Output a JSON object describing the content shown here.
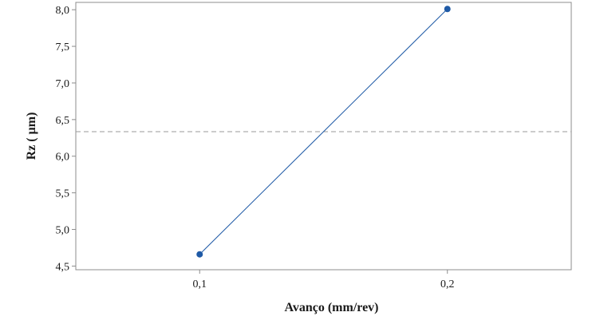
{
  "chart_data": {
    "type": "line",
    "title": "",
    "xlabel": "Avanço (mm/rev)",
    "ylabel": "Rz ( µm)",
    "categories": [
      "0,1",
      "0,2"
    ],
    "series": [
      {
        "name": "Rz",
        "x": [
          0.1,
          0.2
        ],
        "values": [
          4.66,
          8.01
        ]
      }
    ],
    "yticks": [
      4.5,
      5.0,
      5.5,
      6.0,
      6.5,
      7.0,
      7.5,
      8.0
    ],
    "ytick_labels": [
      "4,5",
      "5,0",
      "5,5",
      "6,0",
      "6,5",
      "7,0",
      "7,5",
      "8,0"
    ],
    "ylim": [
      4.45,
      8.1
    ],
    "xlim": [
      0.05,
      0.25
    ],
    "reference_line": {
      "style": "dashed",
      "value": 6.335
    },
    "grid": false,
    "colors": {
      "series": "#1f5aa6",
      "reference": "#9a9a9a",
      "frame": "#8c8c8c"
    }
  }
}
